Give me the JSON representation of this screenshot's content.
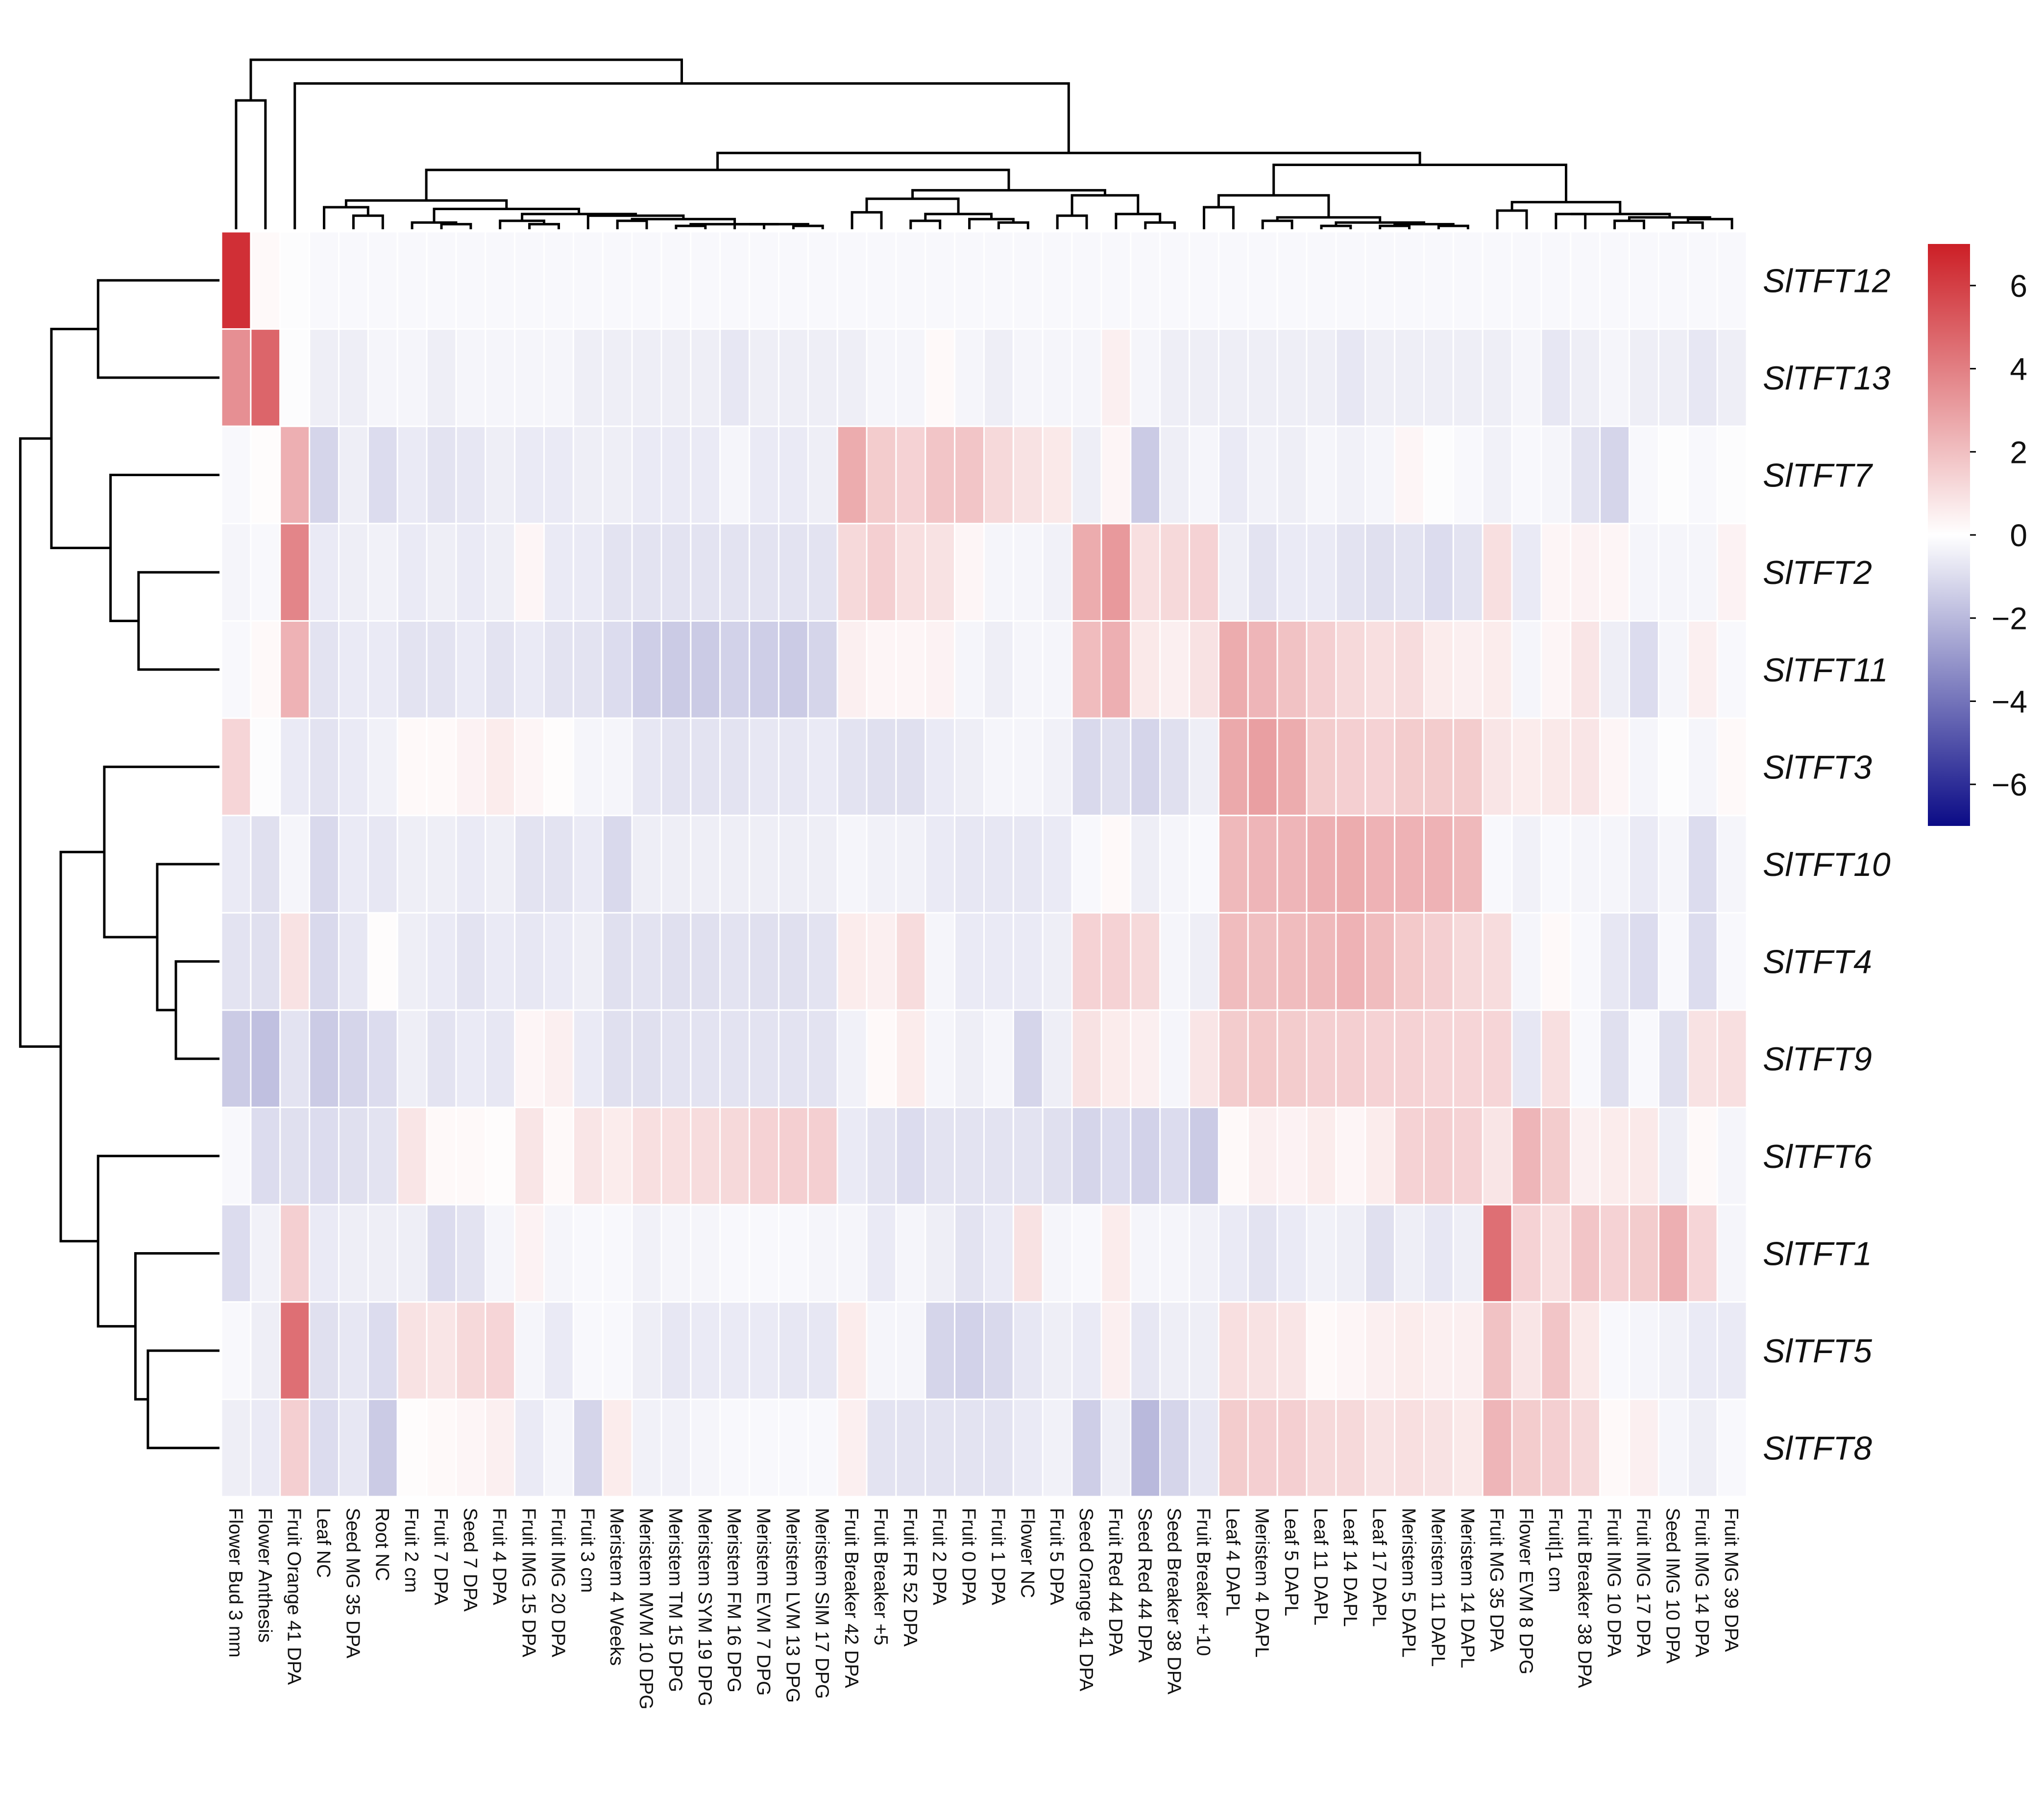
{
  "chart_data": {
    "type": "heatmap",
    "title": "",
    "columns": [
      "Flower Bud 3 mm",
      "Flower Anthesis",
      "Fruit Orange 41 DPA",
      "Leaf NC",
      "Seed MG 35 DPA",
      "Root NC",
      "Fruit 2 cm",
      "Fruit 7 DPA",
      "Seed 7 DPA",
      "Fruit 4 DPA",
      "Fruit IMG 15 DPA",
      "Fruit IMG 20 DPA",
      "Fruit 3 cm",
      "Meristem 4 Weeks",
      "Meristem MVM 10 DPG",
      "Meristem TM 15 DPG",
      "Meristem SYM 19 DPG",
      "Meristem FM 16 DPG",
      "Meristem EVM 7 DPG",
      "Meristem LVM 13 DPG",
      "Meristem SIM 17 DPG",
      "Fruit Breaker 42 DPA",
      "Fruit Breaker +5",
      "Fruit FR 52 DPA",
      "Fruit 2 DPA",
      "Fruit 0 DPA",
      "Fruit 1 DPA",
      "Flower NC",
      "Fruit 5 DPA",
      "Seed Orange 41 DPA",
      "Fruit Red 44 DPA",
      "Seed Red 44 DPA",
      "Seed Breaker 38 DPA",
      "Fruit Breaker +10",
      "Leaf 4 DAPL",
      "Meristem 4 DAPL",
      "Leaf 5 DAPL",
      "Leaf 11 DAPL",
      "Leaf 14 DAPL",
      "Leaf 17 DAPL",
      "Meristem 5 DAPL",
      "Meristem 11 DAPL",
      "Meristem 14 DAPL",
      "Fruit MG 35 DPA",
      "Flower EVM 8 DPG",
      "Fruit|1 cm",
      "Fruit Breaker 38 DPA",
      "Fruit IMG 10 DPA",
      "Fruit IMG 17 DPA",
      "Seed IMG 10 DPA",
      "Fruit IMG 14 DPA",
      "Fruit MG 39 DPA"
    ],
    "rows": [
      "SlTFT12",
      "SlTFT13",
      "SlTFT7",
      "SlTFT2",
      "SlTFT11",
      "SlTFT3",
      "SlTFT10",
      "SlTFT4",
      "SlTFT9",
      "SlTFT6",
      "SlTFT1",
      "SlTFT5",
      "SlTFT8"
    ],
    "values": [
      [
        6.5,
        0.2,
        -0.1,
        -0.2,
        -0.2,
        -0.2,
        -0.2,
        -0.2,
        -0.2,
        -0.2,
        -0.2,
        -0.2,
        -0.2,
        -0.2,
        -0.2,
        -0.2,
        -0.2,
        -0.2,
        -0.2,
        -0.2,
        -0.2,
        -0.2,
        -0.2,
        -0.2,
        -0.2,
        -0.2,
        -0.2,
        -0.2,
        -0.2,
        -0.2,
        -0.2,
        -0.2,
        -0.2,
        -0.2,
        -0.2,
        -0.2,
        -0.2,
        -0.2,
        -0.2,
        -0.2,
        -0.2,
        -0.2,
        -0.2,
        -0.2,
        -0.2,
        -0.2,
        -0.2,
        -0.2,
        -0.2,
        -0.2,
        -0.2,
        -0.2
      ],
      [
        3.5,
        4.8,
        -0.1,
        -0.5,
        -0.5,
        -0.3,
        -0.3,
        -0.5,
        -0.3,
        -0.3,
        -0.3,
        -0.3,
        -0.5,
        -0.5,
        -0.5,
        -0.5,
        -0.5,
        -0.7,
        -0.5,
        -0.5,
        -0.5,
        -0.5,
        -0.3,
        -0.3,
        0.2,
        -0.3,
        -0.5,
        -0.3,
        -0.3,
        -0.3,
        0.5,
        -0.3,
        -0.5,
        -0.5,
        -0.5,
        -0.5,
        -0.5,
        -0.5,
        -0.7,
        -0.5,
        -0.5,
        -0.5,
        -0.5,
        -0.5,
        -0.3,
        -0.7,
        -0.5,
        -0.3,
        -0.5,
        -0.5,
        -0.7,
        -0.5
      ],
      [
        -0.2,
        0.1,
        2.5,
        -1.2,
        -0.5,
        -1.0,
        -0.6,
        -0.8,
        -0.7,
        -0.5,
        -0.6,
        -0.6,
        -0.5,
        -0.5,
        -0.6,
        -0.6,
        -0.6,
        -0.3,
        -0.6,
        -0.6,
        -0.5,
        2.6,
        1.6,
        1.4,
        1.8,
        1.8,
        1.2,
        0.9,
        0.7,
        -0.5,
        0.3,
        -1.5,
        -0.5,
        -0.3,
        -0.6,
        -0.4,
        -0.5,
        -0.3,
        -0.4,
        -0.3,
        0.3,
        -0.1,
        -0.2,
        -0.4,
        -0.2,
        -0.3,
        -0.8,
        -1.2,
        -0.2,
        -0.1,
        -0.2,
        -0.1
      ],
      [
        -0.3,
        -0.2,
        3.8,
        -0.6,
        -0.5,
        -0.4,
        -0.6,
        -0.5,
        -0.6,
        -0.5,
        0.3,
        -0.6,
        -0.6,
        -0.8,
        -0.8,
        -0.8,
        -0.8,
        -0.8,
        -0.8,
        -0.8,
        -0.8,
        1.2,
        1.5,
        1.0,
        0.9,
        0.3,
        -0.3,
        -0.3,
        -0.4,
        2.6,
        3.2,
        1.0,
        1.2,
        1.4,
        -0.5,
        -0.8,
        -0.6,
        -0.6,
        -0.8,
        -0.9,
        -0.8,
        -1.0,
        -0.8,
        1.0,
        -0.6,
        0.3,
        0.4,
        0.3,
        -0.3,
        -0.3,
        -0.3,
        0.4
      ],
      [
        -0.2,
        0.2,
        2.4,
        -0.8,
        -0.6,
        -0.6,
        -0.8,
        -0.8,
        -0.6,
        -0.8,
        -0.6,
        -0.8,
        -0.8,
        -1.0,
        -1.4,
        -1.5,
        -1.5,
        -1.3,
        -1.4,
        -1.5,
        -1.2,
        0.5,
        0.3,
        0.3,
        0.4,
        -0.3,
        -0.5,
        -0.3,
        -0.3,
        2.1,
        2.5,
        0.7,
        0.5,
        0.9,
        2.6,
        2.3,
        1.9,
        1.5,
        1.2,
        1.0,
        1.1,
        0.6,
        0.5,
        0.6,
        -0.3,
        0.3,
        0.8,
        -0.5,
        -1.0,
        -0.3,
        0.5,
        -0.2
      ],
      [
        1.3,
        -0.1,
        -0.6,
        -0.8,
        -0.6,
        -0.4,
        0.2,
        0.2,
        0.4,
        0.6,
        0.3,
        0.1,
        -0.3,
        -0.3,
        -0.7,
        -0.8,
        -0.8,
        -0.8,
        -0.7,
        -0.7,
        -0.6,
        -0.8,
        -0.9,
        -0.9,
        -0.6,
        -0.5,
        -0.3,
        -0.3,
        -0.4,
        -1.1,
        -0.9,
        -1.2,
        -0.9,
        -0.5,
        2.7,
        3.0,
        2.6,
        1.6,
        1.5,
        1.4,
        1.6,
        1.6,
        1.6,
        0.8,
        0.6,
        0.7,
        0.8,
        0.3,
        -0.3,
        -0.1,
        -0.3,
        0.2
      ],
      [
        -0.6,
        -0.9,
        -0.3,
        -1.1,
        -0.6,
        -0.7,
        -0.5,
        -0.5,
        -0.6,
        -0.5,
        -0.8,
        -0.8,
        -0.6,
        -1.1,
        -0.5,
        -0.5,
        -0.5,
        -0.5,
        -0.5,
        -0.5,
        -0.5,
        -0.3,
        -0.4,
        -0.4,
        -0.6,
        -0.7,
        -0.7,
        -0.7,
        -0.6,
        -0.2,
        0.2,
        -0.5,
        -0.3,
        -0.2,
        2.2,
        2.3,
        2.3,
        2.5,
        2.6,
        2.4,
        2.4,
        2.4,
        2.2,
        -0.2,
        -0.4,
        -0.2,
        -0.3,
        -0.3,
        -0.6,
        -0.3,
        -1.0,
        -0.3
      ],
      [
        -0.8,
        -0.9,
        0.9,
        -1.1,
        -0.7,
        0.1,
        -0.5,
        -0.6,
        -0.8,
        -0.6,
        -0.7,
        -0.6,
        -0.5,
        -0.9,
        -0.8,
        -0.9,
        -0.9,
        -0.8,
        -0.9,
        -0.9,
        -0.8,
        0.6,
        0.5,
        1.1,
        -0.3,
        -0.6,
        -0.6,
        -0.6,
        -0.5,
        1.4,
        1.4,
        1.2,
        -0.3,
        -0.5,
        2.1,
        2.0,
        2.1,
        2.2,
        2.4,
        2.1,
        1.7,
        1.5,
        1.2,
        1.1,
        -0.3,
        0.2,
        -0.2,
        -0.7,
        -1.0,
        -0.2,
        -1.0,
        -0.2
      ],
      [
        -1.5,
        -1.8,
        -0.8,
        -1.5,
        -1.2,
        -1.0,
        -0.5,
        -0.8,
        -0.6,
        -0.7,
        0.3,
        0.5,
        -0.6,
        -0.9,
        -0.9,
        -0.8,
        -0.8,
        -0.8,
        -0.8,
        -0.8,
        -0.8,
        -0.4,
        0.2,
        0.6,
        -0.3,
        -0.5,
        -0.3,
        -1.2,
        -0.5,
        0.9,
        0.6,
        0.5,
        -0.3,
        0.8,
        1.6,
        1.7,
        1.6,
        1.5,
        1.5,
        1.4,
        1.4,
        1.3,
        1.3,
        1.3,
        -0.7,
        1.0,
        -0.2,
        -0.9,
        -0.2,
        -0.9,
        0.9,
        1.0
      ],
      [
        -0.2,
        -1.0,
        -0.9,
        -1.0,
        -0.9,
        -0.8,
        0.8,
        0.2,
        0.2,
        0.1,
        0.8,
        0.2,
        0.8,
        0.6,
        1.0,
        1.0,
        1.1,
        1.2,
        1.4,
        1.5,
        1.5,
        -0.6,
        -0.8,
        -1.0,
        -0.8,
        -0.8,
        -0.8,
        -0.8,
        -0.9,
        -1.2,
        -1.0,
        -1.3,
        -1.0,
        -1.5,
        0.2,
        0.5,
        0.4,
        0.6,
        0.3,
        0.6,
        1.4,
        1.5,
        1.4,
        0.8,
        2.3,
        1.6,
        0.5,
        0.6,
        0.7,
        -0.5,
        0.2,
        -0.3
      ],
      [
        -1.0,
        -0.4,
        1.5,
        -0.6,
        -0.5,
        -0.5,
        -0.5,
        -1.0,
        -0.8,
        -0.3,
        0.4,
        -0.3,
        -0.2,
        -0.2,
        -0.4,
        -0.3,
        -0.3,
        -0.2,
        -0.2,
        -0.2,
        -0.3,
        -0.3,
        -0.6,
        -0.3,
        -0.5,
        -0.8,
        -0.6,
        0.9,
        -0.3,
        -0.2,
        0.6,
        -0.3,
        -0.3,
        -0.4,
        -0.6,
        -0.8,
        -0.6,
        -0.4,
        -0.5,
        -0.9,
        -0.5,
        -0.7,
        -0.5,
        4.5,
        1.4,
        1.0,
        1.8,
        1.4,
        1.6,
        2.5,
        1.3,
        -0.3
      ],
      [
        -0.2,
        -0.5,
        4.5,
        -0.9,
        -0.7,
        -1.0,
        0.9,
        0.8,
        1.2,
        1.3,
        -0.3,
        -0.6,
        -0.2,
        -0.2,
        -0.5,
        -0.7,
        -0.6,
        -0.6,
        -0.6,
        -0.7,
        -0.7,
        0.6,
        -0.3,
        -0.3,
        -1.2,
        -1.3,
        -1.1,
        -0.7,
        -0.5,
        -0.6,
        0.5,
        -0.7,
        -0.5,
        -0.5,
        1.0,
        0.9,
        0.8,
        0.2,
        0.3,
        0.5,
        0.6,
        0.5,
        0.5,
        1.9,
        0.8,
        1.8,
        0.7,
        -0.2,
        -0.3,
        -0.4,
        -0.6,
        -0.6
      ],
      [
        -0.5,
        -0.6,
        1.5,
        -1.0,
        -0.7,
        -1.5,
        0.1,
        0.2,
        0.3,
        0.5,
        -0.6,
        -0.3,
        -1.2,
        0.6,
        -0.4,
        -0.4,
        -0.3,
        -0.2,
        -0.2,
        -0.2,
        -0.2,
        0.5,
        -0.8,
        -0.8,
        -0.8,
        -0.8,
        -0.8,
        -0.6,
        -0.4,
        -1.4,
        -0.5,
        -2.0,
        -1.2,
        -0.7,
        1.6,
        1.5,
        1.5,
        1.2,
        1.2,
        0.9,
        1.0,
        0.9,
        0.7,
        2.3,
        1.6,
        1.5,
        1.2,
        0.2,
        0.5,
        -0.3,
        -0.5,
        -0.2
      ]
    ],
    "colorbar": {
      "ticks": [
        6,
        4,
        2,
        0,
        -2,
        -4,
        -6
      ],
      "range": [
        -7,
        7
      ],
      "low_color": "#0b0b86",
      "mid_color": "#ffffff",
      "high_color": "#cc1f26"
    },
    "row_dendrogram_order": [
      "SlTFT12",
      "SlTFT13",
      "SlTFT7",
      "SlTFT2",
      "SlTFT11",
      "SlTFT3",
      "SlTFT10",
      "SlTFT4",
      "SlTFT9",
      "SlTFT6",
      "SlTFT1",
      "SlTFT5",
      "SlTFT8"
    ]
  }
}
